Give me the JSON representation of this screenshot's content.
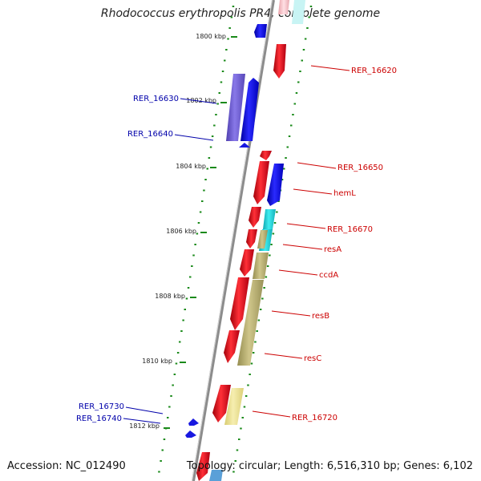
{
  "title": "Rhodococcus erythropolis PR4, complete genome",
  "footer": {
    "accession": "Accession: NC_012490",
    "summary": "Topology: circular; Length: 6,516,310 bp; Genes: 6,102"
  },
  "ruler": {
    "labels": [
      "1800 kbp",
      "1802 kbp",
      "1804 kbp",
      "1806 kbp",
      "1808 kbp",
      "1810 kbp",
      "1812 kbp"
    ]
  },
  "gene_labels": {
    "right": [
      "RER_16620",
      "RER_16650",
      "hemL",
      "RER_16670",
      "resA",
      "ccdA",
      "resB",
      "resC",
      "RER_16720"
    ],
    "left": [
      "RER_16630",
      "RER_16640",
      "RER_16730",
      "RER_16740"
    ]
  },
  "colors": {
    "forward_strand": "#e8202a",
    "reverse_strand": "#1818e0",
    "cyan_feature": "#22d0d6",
    "olive_feature": "#b8b070",
    "violet_feature": "#7060d0",
    "right_label": "#cc0000",
    "left_label": "#0000aa",
    "tick": "#1a8a1a",
    "backbone": "#909090"
  }
}
